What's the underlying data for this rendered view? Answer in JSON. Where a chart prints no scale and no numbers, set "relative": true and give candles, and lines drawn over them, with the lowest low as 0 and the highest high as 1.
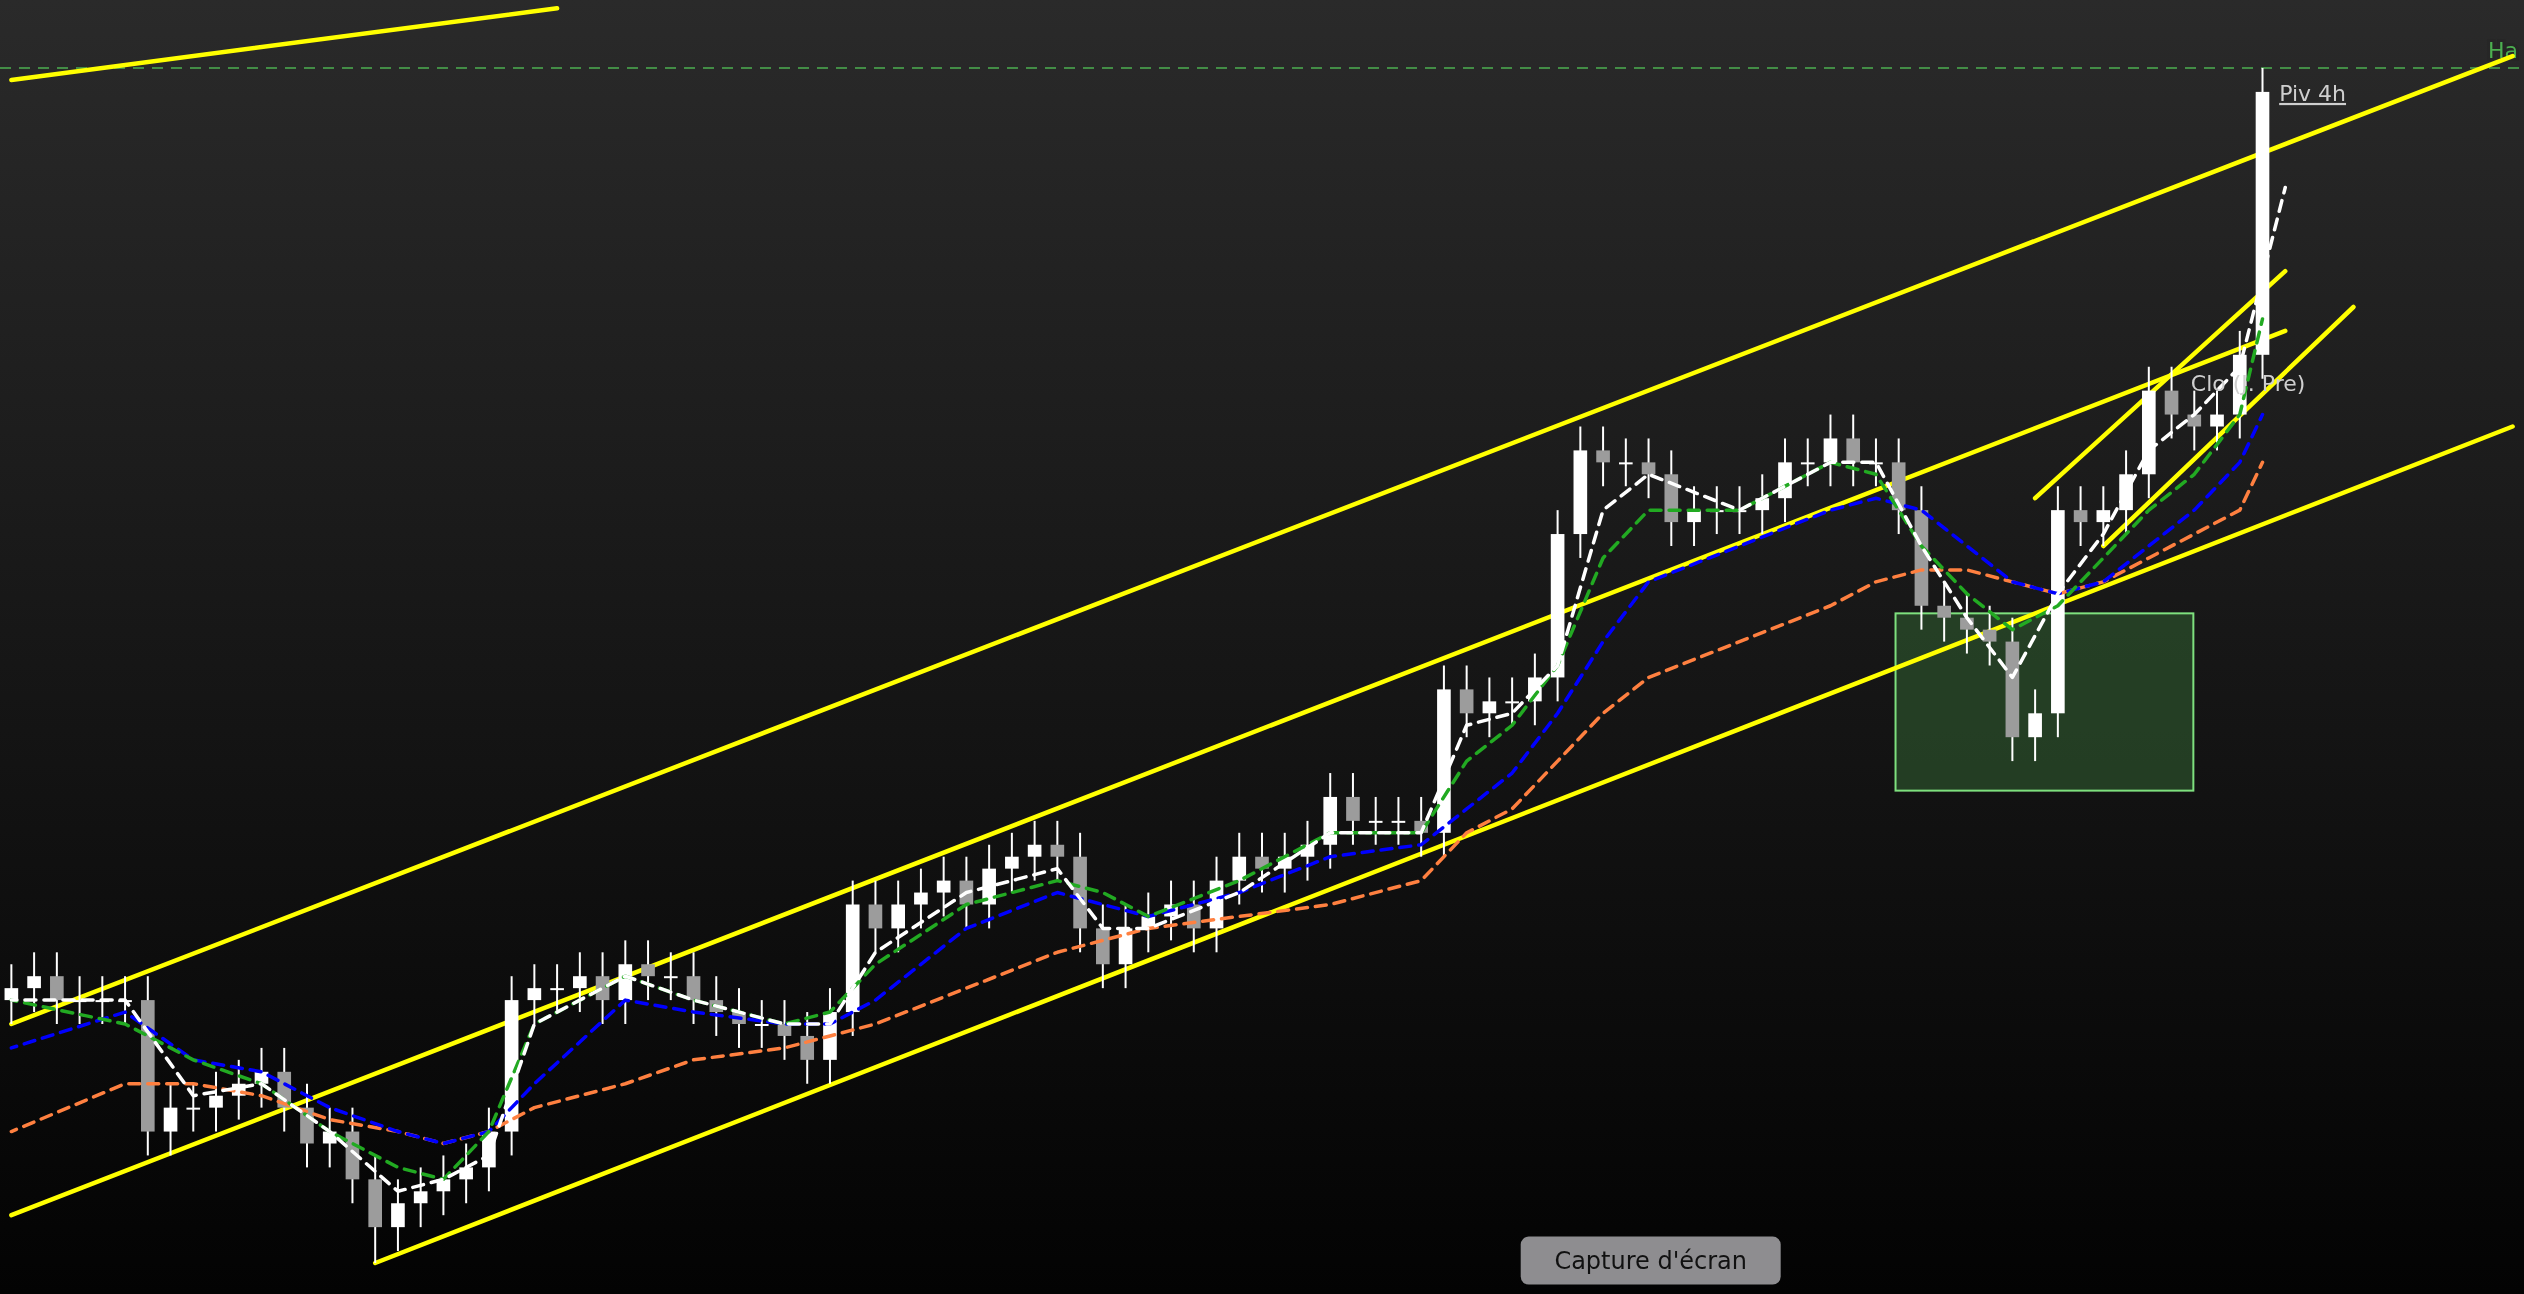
{
  "chart_data": {
    "type": "candlestick",
    "relative": true,
    "categories": [
      null,
      null,
      null,
      null,
      null,
      null,
      null,
      null,
      null,
      null,
      null,
      null,
      null,
      null,
      null,
      null,
      null,
      null,
      null,
      null,
      null,
      null,
      null,
      null,
      null,
      null,
      null,
      null,
      null,
      null,
      null,
      null,
      null,
      null,
      null,
      null,
      null,
      null,
      null,
      null,
      null,
      null,
      null,
      null,
      null,
      null,
      null,
      null,
      null,
      null,
      null,
      null,
      null,
      null,
      null,
      null,
      null,
      null,
      null,
      null,
      null,
      null,
      null,
      null,
      null,
      null,
      null,
      null,
      null,
      null,
      null,
      null,
      null,
      null,
      null,
      null,
      null,
      null,
      null,
      null,
      null,
      null,
      null,
      null,
      null,
      null,
      null,
      null,
      null,
      null,
      null,
      null,
      null,
      null,
      null,
      null,
      null,
      null,
      null,
      null,
      null,
      null,
      null,
      null,
      null,
      null,
      null,
      null,
      null,
      null,
      null
    ],
    "ohlc": [
      [
        0.22,
        0.25,
        0.2,
        0.23
      ],
      [
        0.23,
        0.26,
        0.21,
        0.24
      ],
      [
        0.24,
        0.26,
        0.2,
        0.22
      ],
      [
        0.22,
        0.24,
        0.2,
        0.22
      ],
      [
        0.22,
        0.24,
        0.2,
        0.22
      ],
      [
        0.22,
        0.24,
        0.2,
        0.22
      ],
      [
        0.22,
        0.24,
        0.09,
        0.11
      ],
      [
        0.11,
        0.15,
        0.09,
        0.13
      ],
      [
        0.13,
        0.15,
        0.11,
        0.13
      ],
      [
        0.13,
        0.16,
        0.11,
        0.14
      ],
      [
        0.14,
        0.17,
        0.12,
        0.15
      ],
      [
        0.15,
        0.18,
        0.13,
        0.16
      ],
      [
        0.16,
        0.18,
        0.11,
        0.13
      ],
      [
        0.13,
        0.15,
        0.08,
        0.1
      ],
      [
        0.1,
        0.13,
        0.08,
        0.11
      ],
      [
        0.11,
        0.13,
        0.05,
        0.07
      ],
      [
        0.07,
        0.09,
        0.0,
        0.03
      ],
      [
        0.03,
        0.07,
        0.01,
        0.05
      ],
      [
        0.05,
        0.08,
        0.03,
        0.06
      ],
      [
        0.06,
        0.09,
        0.04,
        0.07
      ],
      [
        0.07,
        0.1,
        0.05,
        0.08
      ],
      [
        0.08,
        0.13,
        0.06,
        0.11
      ],
      [
        0.11,
        0.24,
        0.09,
        0.22
      ],
      [
        0.22,
        0.25,
        0.2,
        0.23
      ],
      [
        0.23,
        0.25,
        0.21,
        0.23
      ],
      [
        0.23,
        0.26,
        0.21,
        0.24
      ],
      [
        0.24,
        0.26,
        0.2,
        0.22
      ],
      [
        0.22,
        0.27,
        0.2,
        0.25
      ],
      [
        0.25,
        0.27,
        0.22,
        0.24
      ],
      [
        0.24,
        0.26,
        0.22,
        0.24
      ],
      [
        0.24,
        0.26,
        0.2,
        0.22
      ],
      [
        0.22,
        0.24,
        0.19,
        0.21
      ],
      [
        0.21,
        0.23,
        0.18,
        0.2
      ],
      [
        0.2,
        0.22,
        0.18,
        0.2
      ],
      [
        0.2,
        0.22,
        0.17,
        0.19
      ],
      [
        0.19,
        0.21,
        0.15,
        0.17
      ],
      [
        0.17,
        0.23,
        0.15,
        0.21
      ],
      [
        0.21,
        0.32,
        0.19,
        0.3
      ],
      [
        0.3,
        0.32,
        0.26,
        0.28
      ],
      [
        0.28,
        0.32,
        0.26,
        0.3
      ],
      [
        0.3,
        0.33,
        0.28,
        0.31
      ],
      [
        0.31,
        0.34,
        0.29,
        0.32
      ],
      [
        0.32,
        0.34,
        0.28,
        0.3
      ],
      [
        0.3,
        0.35,
        0.28,
        0.33
      ],
      [
        0.33,
        0.36,
        0.31,
        0.34
      ],
      [
        0.34,
        0.37,
        0.32,
        0.35
      ],
      [
        0.35,
        0.37,
        0.32,
        0.34
      ],
      [
        0.34,
        0.36,
        0.26,
        0.28
      ],
      [
        0.28,
        0.3,
        0.23,
        0.25
      ],
      [
        0.25,
        0.3,
        0.23,
        0.28
      ],
      [
        0.28,
        0.31,
        0.26,
        0.29
      ],
      [
        0.29,
        0.32,
        0.27,
        0.3
      ],
      [
        0.3,
        0.32,
        0.26,
        0.28
      ],
      [
        0.28,
        0.34,
        0.26,
        0.32
      ],
      [
        0.32,
        0.36,
        0.3,
        0.34
      ],
      [
        0.34,
        0.36,
        0.31,
        0.33
      ],
      [
        0.33,
        0.36,
        0.31,
        0.34
      ],
      [
        0.34,
        0.37,
        0.32,
        0.35
      ],
      [
        0.35,
        0.41,
        0.33,
        0.39
      ],
      [
        0.39,
        0.41,
        0.35,
        0.37
      ],
      [
        0.37,
        0.39,
        0.35,
        0.37
      ],
      [
        0.37,
        0.39,
        0.35,
        0.37
      ],
      [
        0.37,
        0.39,
        0.34,
        0.36
      ],
      [
        0.36,
        0.5,
        0.34,
        0.48
      ],
      [
        0.48,
        0.5,
        0.44,
        0.46
      ],
      [
        0.46,
        0.49,
        0.44,
        0.47
      ],
      [
        0.47,
        0.49,
        0.45,
        0.47
      ],
      [
        0.47,
        0.51,
        0.45,
        0.49
      ],
      [
        0.49,
        0.63,
        0.47,
        0.61
      ],
      [
        0.61,
        0.7,
        0.59,
        0.68
      ],
      [
        0.68,
        0.7,
        0.65,
        0.67
      ],
      [
        0.67,
        0.69,
        0.65,
        0.67
      ],
      [
        0.67,
        0.69,
        0.64,
        0.66
      ],
      [
        0.66,
        0.68,
        0.6,
        0.62
      ],
      [
        0.62,
        0.65,
        0.6,
        0.63
      ],
      [
        0.63,
        0.65,
        0.61,
        0.63
      ],
      [
        0.63,
        0.65,
        0.61,
        0.63
      ],
      [
        0.63,
        0.66,
        0.61,
        0.64
      ],
      [
        0.64,
        0.69,
        0.62,
        0.67
      ],
      [
        0.67,
        0.69,
        0.65,
        0.67
      ],
      [
        0.67,
        0.71,
        0.65,
        0.69
      ],
      [
        0.69,
        0.71,
        0.65,
        0.67
      ],
      [
        0.67,
        0.69,
        0.65,
        0.67
      ],
      [
        0.67,
        0.69,
        0.61,
        0.63
      ],
      [
        0.63,
        0.65,
        0.53,
        0.55
      ],
      [
        0.55,
        0.57,
        0.52,
        0.54
      ],
      [
        0.54,
        0.56,
        0.51,
        0.53
      ],
      [
        0.53,
        0.55,
        0.5,
        0.52
      ],
      [
        0.52,
        0.54,
        0.42,
        0.44
      ],
      [
        0.44,
        0.48,
        0.42,
        0.46
      ],
      [
        0.46,
        0.65,
        0.44,
        0.63
      ],
      [
        0.63,
        0.65,
        0.6,
        0.62
      ],
      [
        0.62,
        0.65,
        0.6,
        0.63
      ],
      [
        0.63,
        0.68,
        0.61,
        0.66
      ],
      [
        0.66,
        0.75,
        0.64,
        0.73
      ],
      [
        0.73,
        0.75,
        0.69,
        0.71
      ],
      [
        0.71,
        0.73,
        0.68,
        0.7
      ],
      [
        0.7,
        0.73,
        0.68,
        0.71
      ],
      [
        0.71,
        0.78,
        0.69,
        0.76
      ],
      [
        0.76,
        1.0,
        0.74,
        0.98
      ],
      null,
      null,
      null,
      null,
      null,
      null,
      null,
      null,
      null,
      null,
      null
    ],
    "series": [
      {
        "type": "line",
        "color": "#ff8040",
        "line_style": "dashed",
        "values": [
          0.11,
          null,
          null,
          null,
          null,
          0.15,
          null,
          null,
          0.15,
          null,
          null,
          0.14,
          null,
          null,
          0.12,
          null,
          null,
          0.11,
          null,
          0.1,
          null,
          0.11,
          null,
          0.13,
          null,
          null,
          null,
          0.15,
          null,
          null,
          0.17,
          null,
          null,
          null,
          0.18,
          null,
          0.19,
          null,
          0.2,
          null,
          null,
          null,
          0.23,
          null,
          null,
          null,
          0.26,
          null,
          0.27,
          null,
          0.28,
          null,
          null,
          null,
          0.29,
          null,
          null,
          null,
          0.3,
          null,
          null,
          null,
          0.32,
          null,
          0.36,
          null,
          0.38,
          null,
          0.42,
          null,
          0.46,
          null,
          0.49,
          null,
          null,
          null,
          0.52,
          null,
          null,
          null,
          0.55,
          null,
          0.57,
          null,
          0.58,
          null,
          0.58,
          null,
          0.57,
          null,
          0.56,
          null,
          0.57,
          null,
          0.59,
          null,
          0.61,
          null,
          0.63,
          0.67,
          null,
          null,
          null,
          null,
          null,
          null,
          null,
          null,
          null,
          null,
          null
        ]
      },
      {
        "type": "line",
        "color": "#0000ff",
        "line_style": "dashed",
        "values": [
          0.18,
          null,
          null,
          null,
          null,
          0.21,
          null,
          null,
          0.17,
          null,
          null,
          0.16,
          null,
          null,
          0.13,
          null,
          null,
          0.11,
          null,
          0.1,
          null,
          0.11,
          null,
          0.15,
          null,
          null,
          null,
          0.22,
          null,
          null,
          0.21,
          null,
          null,
          null,
          0.2,
          null,
          0.2,
          null,
          0.22,
          null,
          null,
          null,
          0.28,
          null,
          null,
          null,
          0.31,
          null,
          0.3,
          null,
          0.29,
          null,
          null,
          null,
          0.31,
          null,
          null,
          null,
          0.34,
          null,
          null,
          null,
          0.35,
          null,
          0.38,
          null,
          0.41,
          null,
          0.46,
          null,
          0.52,
          null,
          0.57,
          null,
          null,
          null,
          0.6,
          null,
          null,
          null,
          0.63,
          null,
          0.64,
          null,
          0.63,
          null,
          0.6,
          null,
          0.57,
          null,
          0.56,
          null,
          0.57,
          null,
          0.6,
          null,
          0.63,
          null,
          0.67,
          0.71,
          null,
          null,
          null,
          null,
          null,
          null,
          null,
          null,
          null,
          null,
          null
        ]
      },
      {
        "type": "line",
        "color": "#22aa22",
        "line_style": "dashed",
        "values": [
          0.22,
          null,
          null,
          null,
          null,
          0.2,
          null,
          null,
          0.17,
          null,
          null,
          0.15,
          null,
          null,
          0.11,
          null,
          null,
          0.08,
          null,
          0.07,
          null,
          0.11,
          null,
          0.2,
          null,
          null,
          null,
          0.24,
          null,
          null,
          0.22,
          null,
          null,
          null,
          0.2,
          null,
          0.21,
          null,
          0.25,
          null,
          null,
          null,
          0.3,
          null,
          null,
          null,
          0.32,
          null,
          0.31,
          null,
          0.29,
          null,
          null,
          null,
          0.32,
          null,
          null,
          null,
          0.36,
          null,
          null,
          null,
          0.36,
          null,
          0.42,
          null,
          0.45,
          null,
          0.5,
          null,
          0.59,
          null,
          0.63,
          null,
          null,
          null,
          0.63,
          null,
          null,
          null,
          0.67,
          null,
          0.66,
          null,
          0.6,
          null,
          0.56,
          null,
          0.53,
          null,
          0.55,
          null,
          0.59,
          null,
          0.63,
          null,
          0.66,
          null,
          0.71,
          0.79,
          null,
          null,
          null,
          null,
          null,
          null,
          null,
          null,
          null,
          null,
          null
        ]
      },
      {
        "type": "line",
        "color": "#ffffff",
        "line_style": "dashed",
        "values": [
          0.22,
          null,
          null,
          null,
          null,
          0.22,
          null,
          null,
          0.14,
          null,
          null,
          0.15,
          null,
          null,
          0.11,
          null,
          null,
          0.06,
          null,
          0.07,
          null,
          0.09,
          null,
          0.2,
          null,
          null,
          null,
          0.24,
          null,
          null,
          0.22,
          null,
          null,
          null,
          0.2,
          null,
          0.2,
          null,
          0.26,
          null,
          null,
          null,
          0.31,
          null,
          null,
          null,
          0.33,
          null,
          0.28,
          null,
          0.28,
          null,
          null,
          null,
          0.31,
          null,
          null,
          null,
          0.36,
          null,
          null,
          null,
          0.36,
          null,
          0.45,
          null,
          0.46,
          null,
          0.5,
          null,
          0.63,
          null,
          0.66,
          null,
          null,
          null,
          0.63,
          null,
          null,
          null,
          0.67,
          null,
          0.67,
          null,
          0.6,
          null,
          0.54,
          null,
          0.49,
          null,
          0.56,
          null,
          0.61,
          null,
          0.68,
          null,
          0.71,
          null,
          0.75,
          null,
          0.9,
          null,
          null,
          null,
          null,
          null,
          null,
          null,
          null,
          null,
          null
        ]
      },
      {
        "type": "line",
        "color": "#ffff00",
        "line_style": "solid",
        "values": [
          0.99,
          null,
          null,
          null,
          null,
          null,
          null,
          null,
          null,
          null,
          null,
          null,
          null,
          null,
          null,
          null,
          null,
          null,
          null,
          null,
          null,
          null,
          null,
          null,
          1.05,
          null,
          null,
          null,
          null,
          null,
          null,
          null,
          null,
          null,
          null,
          null,
          null,
          null,
          null,
          null,
          null,
          null,
          null,
          null,
          null,
          null,
          null,
          null,
          null,
          null,
          null,
          null,
          null,
          null,
          null,
          null,
          null,
          null,
          null,
          null,
          null,
          null,
          null,
          null,
          null,
          null,
          null,
          null,
          null,
          null,
          null,
          null,
          null,
          null,
          null,
          null,
          null,
          null,
          null,
          null,
          null,
          null,
          null,
          null,
          null,
          null,
          null,
          null,
          null,
          null,
          null,
          null,
          null,
          null,
          null,
          null,
          null,
          null,
          null,
          null,
          null,
          null,
          null,
          null,
          null,
          null,
          null,
          null,
          null,
          null,
          null
        ]
      },
      {
        "type": "line",
        "color": "#ffff00",
        "line_style": "solid",
        "values": [
          0.2,
          null,
          null,
          null,
          null,
          null,
          null,
          null,
          null,
          null,
          null,
          null,
          null,
          null,
          null,
          null,
          null,
          null,
          null,
          null,
          null,
          null,
          null,
          null,
          null,
          null,
          null,
          null,
          null,
          null,
          null,
          null,
          null,
          null,
          null,
          null,
          null,
          null,
          null,
          null,
          null,
          null,
          null,
          null,
          null,
          null,
          null,
          null,
          null,
          null,
          null,
          null,
          null,
          null,
          null,
          null,
          null,
          null,
          null,
          null,
          null,
          null,
          null,
          null,
          null,
          null,
          null,
          null,
          null,
          null,
          null,
          null,
          null,
          null,
          null,
          null,
          null,
          null,
          null,
          null,
          null,
          null,
          null,
          null,
          null,
          null,
          null,
          null,
          null,
          null,
          null,
          null,
          null,
          null,
          null,
          null,
          null,
          null,
          null,
          null,
          null,
          null,
          null,
          null,
          null,
          null,
          null,
          null,
          null,
          null,
          1.01
        ]
      },
      {
        "type": "line",
        "color": "#ffff00",
        "line_style": "solid",
        "values": [
          0.04,
          null,
          null,
          null,
          null,
          null,
          null,
          null,
          null,
          null,
          null,
          null,
          null,
          null,
          null,
          null,
          null,
          null,
          null,
          null,
          null,
          null,
          null,
          null,
          null,
          null,
          null,
          null,
          null,
          null,
          null,
          null,
          null,
          null,
          null,
          null,
          null,
          null,
          null,
          null,
          null,
          null,
          null,
          null,
          null,
          null,
          null,
          null,
          null,
          null,
          null,
          null,
          null,
          null,
          null,
          null,
          null,
          null,
          null,
          null,
          null,
          null,
          null,
          null,
          null,
          null,
          null,
          null,
          null,
          null,
          null,
          null,
          null,
          null,
          null,
          null,
          null,
          null,
          null,
          null,
          null,
          null,
          null,
          null,
          null,
          null,
          null,
          null,
          null,
          null,
          null,
          null,
          null,
          null,
          null,
          null,
          null,
          null,
          null,
          null,
          0.78,
          null,
          null,
          null,
          null,
          null,
          null,
          null,
          null,
          null,
          null
        ]
      },
      {
        "type": "line",
        "color": "#ffff00",
        "line_style": "solid",
        "values": [
          null,
          null,
          null,
          null,
          null,
          null,
          null,
          null,
          null,
          null,
          null,
          null,
          null,
          null,
          null,
          null,
          0.0,
          null,
          null,
          null,
          null,
          null,
          null,
          null,
          null,
          null,
          null,
          null,
          null,
          null,
          null,
          null,
          null,
          null,
          null,
          null,
          null,
          null,
          null,
          null,
          null,
          null,
          null,
          null,
          null,
          null,
          null,
          null,
          null,
          null,
          null,
          null,
          null,
          null,
          null,
          null,
          null,
          null,
          null,
          null,
          null,
          null,
          null,
          null,
          null,
          null,
          null,
          null,
          null,
          null,
          null,
          null,
          null,
          null,
          null,
          null,
          null,
          null,
          null,
          null,
          null,
          null,
          null,
          null,
          null,
          null,
          null,
          null,
          null,
          null,
          null,
          null,
          null,
          null,
          null,
          null,
          null,
          null,
          null,
          null,
          null,
          null,
          null,
          null,
          null,
          null,
          null,
          null,
          null,
          null,
          0.7
        ]
      },
      {
        "type": "line",
        "color": "#ffff00",
        "line_style": "solid",
        "values": [
          null,
          null,
          null,
          null,
          null,
          null,
          null,
          null,
          null,
          null,
          null,
          null,
          null,
          null,
          null,
          null,
          null,
          null,
          null,
          null,
          null,
          null,
          null,
          null,
          null,
          null,
          null,
          null,
          null,
          null,
          null,
          null,
          null,
          null,
          null,
          null,
          null,
          null,
          null,
          null,
          null,
          null,
          null,
          null,
          null,
          null,
          null,
          null,
          null,
          null,
          null,
          null,
          null,
          null,
          null,
          null,
          null,
          null,
          null,
          null,
          null,
          null,
          null,
          null,
          null,
          null,
          null,
          null,
          null,
          null,
          null,
          null,
          null,
          null,
          null,
          null,
          null,
          null,
          null,
          null,
          null,
          null,
          null,
          null,
          null,
          null,
          null,
          null,
          null,
          0.64,
          null,
          null,
          null,
          null,
          null,
          null,
          null,
          null,
          null,
          null,
          0.83,
          null,
          null,
          null,
          null,
          null,
          null,
          null,
          null,
          null,
          null
        ]
      },
      {
        "type": "line",
        "color": "#ffff00",
        "line_style": "solid",
        "values": [
          null,
          null,
          null,
          null,
          null,
          null,
          null,
          null,
          null,
          null,
          null,
          null,
          null,
          null,
          null,
          null,
          null,
          null,
          null,
          null,
          null,
          null,
          null,
          null,
          null,
          null,
          null,
          null,
          null,
          null,
          null,
          null,
          null,
          null,
          null,
          null,
          null,
          null,
          null,
          null,
          null,
          null,
          null,
          null,
          null,
          null,
          null,
          null,
          null,
          null,
          null,
          null,
          null,
          null,
          null,
          null,
          null,
          null,
          null,
          null,
          null,
          null,
          null,
          null,
          null,
          null,
          null,
          null,
          null,
          null,
          null,
          null,
          null,
          null,
          null,
          null,
          null,
          null,
          null,
          null,
          null,
          null,
          null,
          null,
          null,
          null,
          null,
          null,
          null,
          null,
          null,
          null,
          0.6,
          null,
          null,
          null,
          null,
          null,
          null,
          null,
          null,
          null,
          null,
          0.8,
          null,
          null,
          null,
          null,
          null,
          null,
          null
        ]
      }
    ],
    "ref_lines": [
      {
        "axis": "y",
        "value": 1.0,
        "label": "Ha",
        "color": "#4caf50",
        "line_style": "dashed"
      }
    ],
    "annotations": [
      "Piv 4h",
      "Clo (J. Pre)",
      "Capture d'écran"
    ]
  }
}
